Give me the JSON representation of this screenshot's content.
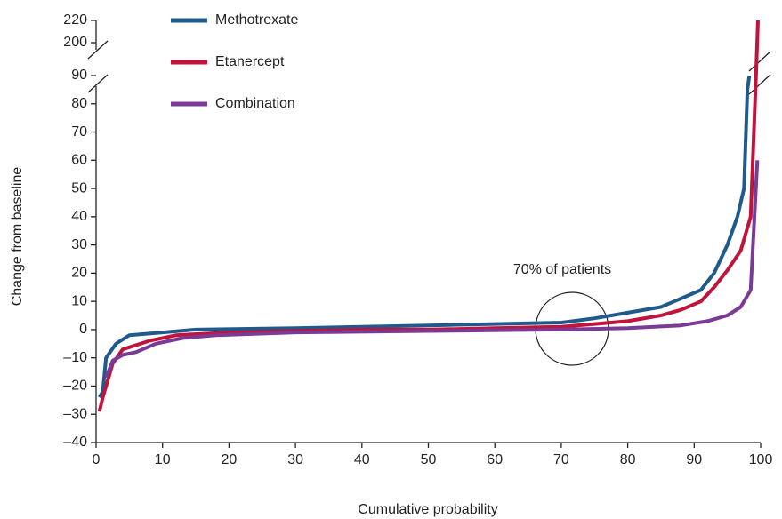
{
  "chart_data": {
    "type": "line",
    "xlabel": "Cumulative probability",
    "ylabel": "Change from baseline",
    "annotation": "70% of patients",
    "xlim": [
      0,
      100
    ],
    "xticks": [
      0,
      10,
      20,
      30,
      40,
      50,
      60,
      70,
      80,
      90,
      100
    ],
    "ylim": [
      -40,
      90
    ],
    "yticks": [
      {
        "value": -40,
        "label": "–40"
      },
      {
        "value": -30,
        "label": "–30"
      },
      {
        "value": -20,
        "label": "–20"
      },
      {
        "value": -10,
        "label": "–10"
      },
      0,
      10,
      20,
      30,
      40,
      50,
      60,
      70,
      80,
      90
    ],
    "ylim_upper": [
      200,
      220
    ],
    "yticks_upper": [
      200,
      220
    ],
    "series": [
      {
        "name": "Methotrexate",
        "color": "#1f5a8c",
        "x": [
          0.5,
          1,
          1.5,
          3,
          5,
          10,
          15,
          30,
          40,
          50,
          60,
          70,
          75,
          80,
          85,
          88,
          91,
          93,
          95,
          96.5,
          97.5,
          98,
          98.3
        ],
        "values": [
          -24,
          -22,
          -10,
          -5,
          -2,
          -1,
          0,
          0.5,
          1,
          1.5,
          2,
          2.5,
          4,
          6,
          8,
          11,
          14,
          20,
          30,
          40,
          50,
          85,
          90
        ]
      },
      {
        "name": "Etanercept",
        "color": "#c0143c",
        "x": [
          0.5,
          1,
          2.5,
          4,
          8,
          12,
          20,
          40,
          50,
          60,
          70,
          75,
          80,
          85,
          88,
          91,
          93,
          95,
          97,
          98.5,
          99.3,
          99.6
        ],
        "values": [
          -29,
          -24,
          -12,
          -7,
          -4,
          -2,
          -1,
          0,
          0,
          0.5,
          1,
          2,
          3,
          5,
          7,
          10,
          15,
          21,
          28,
          40,
          90,
          220
        ]
      },
      {
        "name": "Combination",
        "color": "#7b3a96",
        "x": [
          1.5,
          2.5,
          4,
          6,
          9,
          13,
          18,
          30,
          50,
          70,
          80,
          88,
          92,
          95,
          97,
          98.5,
          99.5
        ],
        "values": [
          -17,
          -11,
          -9,
          -8,
          -5,
          -3,
          -2,
          -1,
          -0.5,
          0,
          0.5,
          1.5,
          3,
          5,
          8,
          14,
          60
        ]
      }
    ]
  }
}
